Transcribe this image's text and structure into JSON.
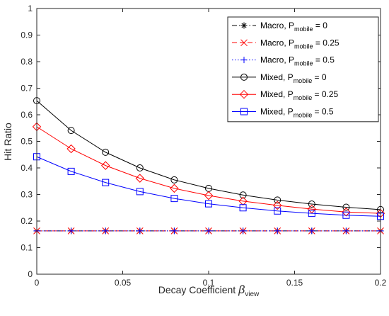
{
  "chart_data": {
    "type": "line",
    "xlabel": {
      "text": "Decay Coefficient ",
      "symbol": "β",
      "sub": "view"
    },
    "ylabel": "Hit Ratio",
    "xlim": [
      0,
      0.2
    ],
    "ylim": [
      0,
      1
    ],
    "xticks": [
      0,
      0.05,
      0.1,
      0.15,
      0.2
    ],
    "xtick_labels": [
      "0",
      "0.05",
      "0.1",
      "0.15",
      "0.2"
    ],
    "yticks": [
      0,
      0.1,
      0.2,
      0.3,
      0.4,
      0.5,
      0.6,
      0.7,
      0.8,
      0.9,
      1
    ],
    "ytick_labels": [
      "0",
      "0.1",
      "0.2",
      "0.3",
      "0.4",
      "0.5",
      "0.6",
      "0.7",
      "0.8",
      "0.9",
      "1"
    ],
    "grid": false,
    "legend_position": "top-right",
    "x": [
      0,
      0.02,
      0.04,
      0.06,
      0.08,
      0.1,
      0.12,
      0.14,
      0.16,
      0.18,
      0.2
    ],
    "series": [
      {
        "name": "Macro, P",
        "sub": "mobile",
        "suffix": " = 0",
        "color": "#000000",
        "marker": "asterisk",
        "dash": "dashdot",
        "values": [
          0.163,
          0.163,
          0.163,
          0.163,
          0.163,
          0.163,
          0.163,
          0.163,
          0.163,
          0.163,
          0.163
        ]
      },
      {
        "name": "Macro, P",
        "sub": "mobile",
        "suffix": " = 0.25",
        "color": "#ff0000",
        "marker": "x",
        "dash": "dashed",
        "values": [
          0.163,
          0.163,
          0.163,
          0.163,
          0.163,
          0.163,
          0.163,
          0.163,
          0.163,
          0.163,
          0.163
        ]
      },
      {
        "name": "Macro, P",
        "sub": "mobile",
        "suffix": " = 0.5",
        "color": "#0000ff",
        "marker": "plus",
        "dash": "dotted",
        "values": [
          0.163,
          0.163,
          0.163,
          0.163,
          0.163,
          0.163,
          0.163,
          0.163,
          0.163,
          0.163,
          0.163
        ]
      },
      {
        "name": "Mixed, P",
        "sub": "mobile",
        "suffix": " = 0",
        "color": "#000000",
        "marker": "circle",
        "dash": "solid",
        "values": [
          0.653,
          0.541,
          0.459,
          0.4,
          0.355,
          0.323,
          0.298,
          0.279,
          0.264,
          0.252,
          0.243
        ]
      },
      {
        "name": "Mixed, P",
        "sub": "mobile",
        "suffix": " = 0.25",
        "color": "#ff0000",
        "marker": "diamond",
        "dash": "solid",
        "values": [
          0.555,
          0.472,
          0.409,
          0.361,
          0.323,
          0.296,
          0.275,
          0.259,
          0.245,
          0.234,
          0.229
        ]
      },
      {
        "name": "Mixed, P",
        "sub": "mobile",
        "suffix": " = 0.5",
        "color": "#0000ff",
        "marker": "square",
        "dash": "solid",
        "values": [
          0.442,
          0.387,
          0.345,
          0.311,
          0.285,
          0.265,
          0.25,
          0.238,
          0.229,
          0.222,
          0.218
        ]
      }
    ]
  }
}
